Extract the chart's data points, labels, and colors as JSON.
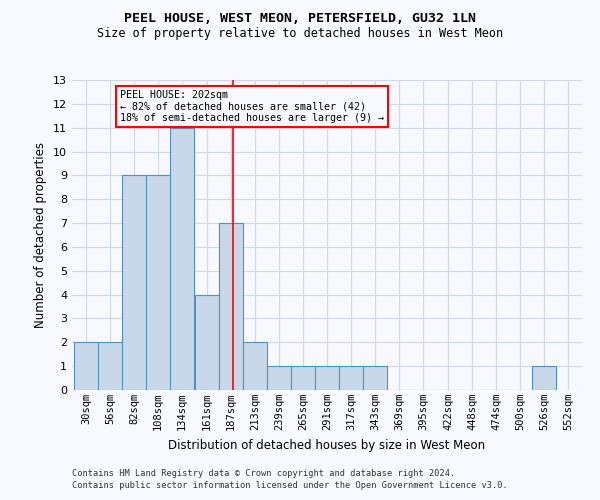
{
  "title": "PEEL HOUSE, WEST MEON, PETERSFIELD, GU32 1LN",
  "subtitle": "Size of property relative to detached houses in West Meon",
  "xlabel": "Distribution of detached houses by size in West Meon",
  "ylabel": "Number of detached properties",
  "bins": [
    "30sqm",
    "56sqm",
    "82sqm",
    "108sqm",
    "134sqm",
    "161sqm",
    "187sqm",
    "213sqm",
    "239sqm",
    "265sqm",
    "291sqm",
    "317sqm",
    "343sqm",
    "369sqm",
    "395sqm",
    "422sqm",
    "448sqm",
    "474sqm",
    "500sqm",
    "526sqm",
    "552sqm"
  ],
  "bin_edges": [
    30,
    56,
    82,
    108,
    134,
    161,
    187,
    213,
    239,
    265,
    291,
    317,
    343,
    369,
    395,
    422,
    448,
    474,
    500,
    526,
    552
  ],
  "counts": [
    2,
    2,
    9,
    9,
    11,
    4,
    7,
    2,
    1,
    1,
    1,
    1,
    1,
    0,
    0,
    0,
    0,
    0,
    0,
    1
  ],
  "bar_color": "#c8d8e8",
  "bar_edge_color": "#5090c8",
  "grid_color": "#d0d8e8",
  "vline_x": 202,
  "vline_color": "red",
  "annotation_title": "PEEL HOUSE: 202sqm",
  "annotation_line1": "← 82% of detached houses are smaller (42)",
  "annotation_line2": "18% of semi-detached houses are larger (9) →",
  "annotation_box_color": "red",
  "ylim": [
    0,
    13
  ],
  "yticks": [
    0,
    1,
    2,
    3,
    4,
    5,
    6,
    7,
    8,
    9,
    10,
    11,
    12,
    13
  ],
  "footer1": "Contains HM Land Registry data © Crown copyright and database right 2024.",
  "footer2": "Contains public sector information licensed under the Open Government Licence v3.0.",
  "bg_color": "#f8f8ff"
}
